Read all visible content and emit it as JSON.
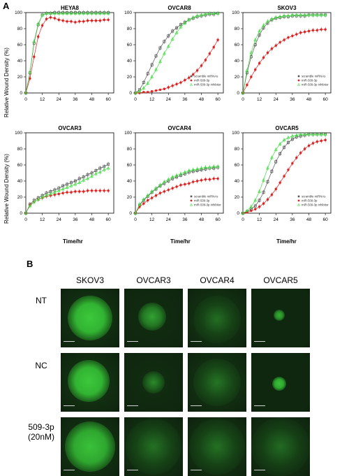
{
  "panel_a": {
    "label": "A"
  },
  "panel_b": {
    "label": "B",
    "columns": [
      "SKOV3",
      "OVCAR3",
      "OVCAR4",
      "OVCAR5"
    ],
    "rows": [
      "NT",
      "NC",
      "509-3p\n(20nM)"
    ],
    "green_color": "#3cc83c"
  },
  "axis_titles": {
    "y": "Relative Wound Density (%)",
    "x": "Time/hr"
  },
  "series_colors": {
    "scramble": "#555555",
    "mimic": "#dd2222",
    "inhibitor": "#44dd44"
  },
  "chart_data": [
    {
      "type": "line",
      "title": "HEYA8",
      "xlim": [
        0,
        64
      ],
      "ylim": [
        0,
        100
      ],
      "xticks": [
        0,
        12,
        24,
        36,
        48,
        60
      ],
      "yticks": [
        0,
        20,
        40,
        60,
        80,
        100
      ],
      "x": [
        0,
        3,
        6,
        9,
        12,
        15,
        18,
        21,
        24,
        27,
        30,
        33,
        36,
        39,
        42,
        45,
        48,
        51,
        54,
        57,
        60
      ],
      "series": [
        {
          "values": [
            0,
            25,
            62,
            85,
            97,
            99,
            99,
            100,
            100,
            100,
            100,
            100,
            100,
            100,
            100,
            100,
            100,
            100,
            100,
            100,
            100
          ]
        },
        {
          "values": [
            0,
            18,
            45,
            70,
            84,
            92,
            94,
            93,
            91,
            90,
            89,
            89,
            88,
            89,
            89,
            90,
            90,
            90,
            90,
            91,
            91
          ]
        },
        {
          "values": [
            0,
            26,
            64,
            86,
            97,
            99,
            99,
            99,
            99,
            99,
            99,
            99,
            99,
            99,
            99,
            99,
            99,
            99,
            99,
            99,
            99
          ]
        }
      ]
    },
    {
      "type": "line",
      "title": "OVCAR8",
      "legend": [
        "scramble miRNAs",
        "miR-509-3p",
        "miR-509-3p inhibitor"
      ],
      "xlim": [
        0,
        64
      ],
      "ylim": [
        0,
        100
      ],
      "xticks": [
        0,
        12,
        24,
        36,
        48,
        60
      ],
      "yticks": [
        0,
        20,
        40,
        60,
        80,
        100
      ],
      "x": [
        0,
        3,
        6,
        9,
        12,
        15,
        18,
        21,
        24,
        27,
        30,
        33,
        36,
        39,
        42,
        45,
        48,
        51,
        54,
        57,
        60
      ],
      "series": [
        {
          "values": [
            0,
            4,
            13,
            24,
            35,
            46,
            56,
            64,
            71,
            77,
            81,
            85,
            88,
            91,
            93,
            95,
            96,
            97,
            98,
            98,
            99
          ]
        },
        {
          "values": [
            0,
            0,
            1,
            1,
            2,
            3,
            4,
            5,
            7,
            9,
            11,
            13,
            16,
            19,
            23,
            28,
            34,
            41,
            49,
            57,
            66
          ]
        },
        {
          "values": [
            0,
            2,
            6,
            12,
            20,
            29,
            39,
            49,
            58,
            67,
            75,
            82,
            87,
            91,
            94,
            96,
            97,
            98,
            99,
            99,
            99
          ]
        }
      ]
    },
    {
      "type": "line",
      "title": "SKOV3",
      "legend": [
        "scramble miRNAs",
        "miR-509-3p",
        "miR-509-3p inhibitor"
      ],
      "xlim": [
        0,
        64
      ],
      "ylim": [
        0,
        100
      ],
      "xticks": [
        0,
        12,
        24,
        36,
        48,
        60
      ],
      "yticks": [
        0,
        20,
        40,
        60,
        80,
        100
      ],
      "x": [
        0,
        3,
        6,
        9,
        12,
        15,
        18,
        21,
        24,
        27,
        30,
        33,
        36,
        39,
        42,
        45,
        48,
        51,
        54,
        57,
        60
      ],
      "series": [
        {
          "values": [
            0,
            25,
            45,
            60,
            72,
            81,
            87,
            91,
            93,
            94,
            95,
            95,
            96,
            96,
            96,
            96,
            97,
            97,
            97,
            97,
            97
          ]
        },
        {
          "values": [
            0,
            10,
            20,
            29,
            37,
            44,
            50,
            55,
            59,
            63,
            66,
            69,
            71,
            73,
            75,
            76,
            77,
            78,
            78,
            79,
            79
          ]
        },
        {
          "values": [
            0,
            28,
            50,
            66,
            77,
            84,
            89,
            92,
            94,
            95,
            96,
            96,
            97,
            97,
            97,
            97,
            97,
            97,
            97,
            97,
            97
          ]
        }
      ]
    },
    {
      "type": "line",
      "title": "OVCAR3",
      "xlim": [
        0,
        64
      ],
      "ylim": [
        0,
        100
      ],
      "xticks": [
        0,
        12,
        24,
        36,
        48,
        60
      ],
      "yticks": [
        0,
        20,
        40,
        60,
        80,
        100
      ],
      "x": [
        0,
        3,
        6,
        9,
        12,
        15,
        18,
        21,
        24,
        27,
        30,
        33,
        36,
        39,
        42,
        45,
        48,
        51,
        54,
        57,
        60
      ],
      "series": [
        {
          "values": [
            0,
            11,
            16,
            19,
            22,
            25,
            27,
            29,
            31,
            34,
            36,
            38,
            40,
            43,
            45,
            48,
            50,
            53,
            56,
            58,
            61
          ]
        },
        {
          "values": [
            0,
            10,
            14,
            17,
            19,
            21,
            22,
            23,
            24,
            25,
            26,
            26,
            27,
            27,
            27,
            28,
            28,
            28,
            28,
            28,
            28
          ]
        },
        {
          "values": [
            0,
            9,
            14,
            17,
            20,
            22,
            24,
            26,
            28,
            30,
            32,
            34,
            36,
            38,
            41,
            43,
            46,
            49,
            51,
            54,
            56
          ]
        }
      ]
    },
    {
      "type": "line",
      "title": "OVCAR4",
      "legend": [
        "scramble miRNAs",
        "miR-509-3p",
        "miR-509-3p inhibitor"
      ],
      "xlim": [
        0,
        64
      ],
      "ylim": [
        0,
        100
      ],
      "xticks": [
        0,
        12,
        24,
        36,
        48,
        60
      ],
      "yticks": [
        0,
        20,
        40,
        60,
        80,
        100
      ],
      "x": [
        0,
        3,
        6,
        9,
        12,
        15,
        18,
        21,
        24,
        27,
        30,
        33,
        36,
        39,
        42,
        45,
        48,
        51,
        54,
        57,
        60
      ],
      "series": [
        {
          "values": [
            0,
            10,
            16,
            21,
            26,
            30,
            34,
            37,
            40,
            43,
            45,
            47,
            49,
            51,
            52,
            53,
            54,
            55,
            56,
            56,
            57
          ]
        },
        {
          "values": [
            0,
            8,
            12,
            16,
            19,
            22,
            25,
            27,
            29,
            31,
            33,
            35,
            36,
            37,
            39,
            40,
            41,
            42,
            42,
            43,
            43
          ]
        },
        {
          "values": [
            0,
            11,
            17,
            22,
            27,
            31,
            35,
            39,
            42,
            45,
            47,
            49,
            51,
            53,
            54,
            55,
            56,
            57,
            57,
            58,
            58
          ]
        }
      ]
    },
    {
      "type": "line",
      "title": "OVCAR5",
      "legend": [
        "scramble miRNAs",
        "miR-509-3p",
        "miR-509-3p inhibitor"
      ],
      "xlim": [
        0,
        64
      ],
      "ylim": [
        0,
        100
      ],
      "xticks": [
        0,
        12,
        24,
        36,
        48,
        60
      ],
      "yticks": [
        0,
        20,
        40,
        60,
        80,
        100
      ],
      "x": [
        0,
        3,
        6,
        9,
        12,
        15,
        18,
        21,
        24,
        27,
        30,
        33,
        36,
        39,
        42,
        45,
        48,
        51,
        54,
        57,
        60
      ],
      "series": [
        {
          "values": [
            0,
            2,
            5,
            9,
            16,
            26,
            39,
            52,
            64,
            74,
            82,
            88,
            92,
            95,
            96,
            97,
            98,
            98,
            98,
            98,
            98
          ]
        },
        {
          "values": [
            0,
            1,
            3,
            5,
            8,
            12,
            17,
            23,
            30,
            38,
            46,
            54,
            62,
            69,
            75,
            80,
            84,
            87,
            89,
            90,
            91
          ]
        },
        {
          "values": [
            0,
            3,
            8,
            16,
            27,
            41,
            56,
            69,
            79,
            86,
            91,
            94,
            96,
            97,
            98,
            98,
            98,
            98,
            98,
            98,
            98
          ]
        }
      ]
    }
  ]
}
